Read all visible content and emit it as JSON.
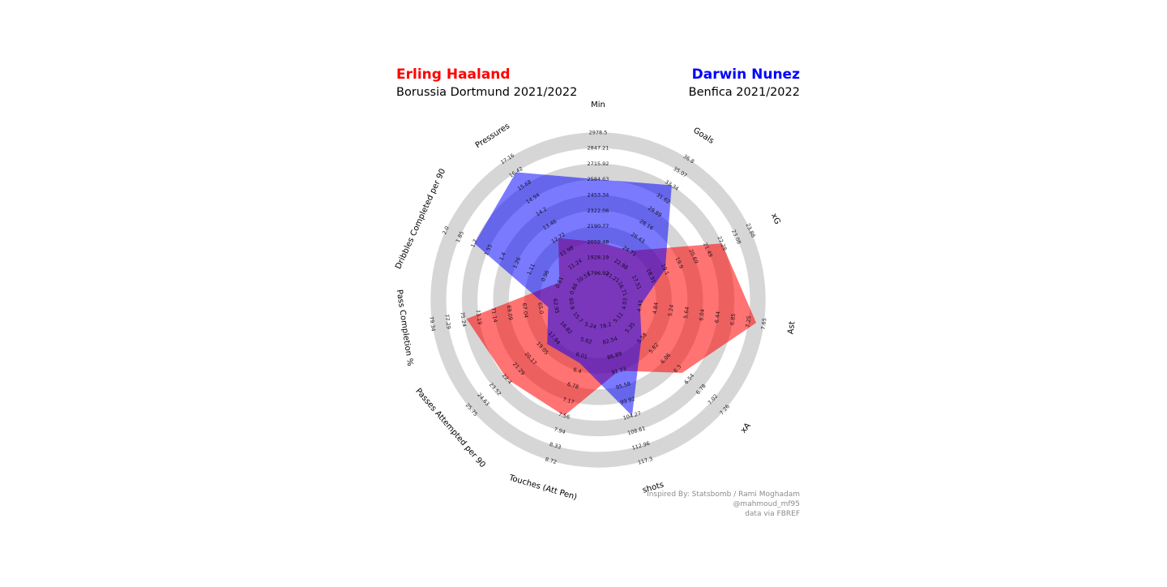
{
  "players": [
    {
      "name": "Erling Haaland",
      "team_season": "Borussia Dortmund 2021/2022",
      "color": "#ff0000"
    },
    {
      "name": "Darwin Nunez",
      "team_season": "Benfica 2021/2022",
      "color": "#0000ff"
    }
  ],
  "credits": [
    "Inspired By: Statsbomb / Rami Moghadam",
    "@mahmoud_mf95",
    "data via FBREF"
  ],
  "chart_data": {
    "type": "radar",
    "ring_fill": "#d6d6d6",
    "axes": [
      {
        "name": "Min",
        "ticks": [
          "1796.92",
          "1928.19",
          "2059.48",
          "2190.77",
          "2322.06",
          "2453.34",
          "2584.63",
          "2715.92",
          "2847.21",
          "2978.5"
        ]
      },
      {
        "name": "Goals",
        "ticks": [
          "21.21",
          "22.98",
          "24.71",
          "26.43",
          "28.16",
          "29.89",
          "31.62",
          "33.34",
          "35.07",
          "36.8"
        ]
      },
      {
        "name": "xG",
        "ticks": [
          "16.71",
          "17.51",
          "18.31",
          "19.1",
          "19.9",
          "20.69",
          "21.49",
          "22.28",
          "23.08",
          "23.88"
        ]
      },
      {
        "name": "Ast",
        "ticks": [
          "4.03",
          "4.43",
          "4.84",
          "5.24",
          "5.64",
          "6.04",
          "6.44",
          "6.85",
          "7.25",
          "7.65"
        ]
      },
      {
        "name": "xA",
        "ticks": [
          "5.11",
          "5.35",
          "5.58",
          "5.82",
          "6.06",
          "6.3",
          "6.54",
          "6.78",
          "7.02",
          "7.26"
        ]
      },
      {
        "name": "shots",
        "ticks": [
          "78.2",
          "82.54",
          "86.89",
          "91.23",
          "95.58",
          "99.92",
          "104.27",
          "108.61",
          "112.96",
          "117.3"
        ]
      },
      {
        "name": "Touches (Att Pen)",
        "ticks": [
          "5.24",
          "5.62",
          "6.01",
          "6.4",
          "6.78",
          "7.17",
          "7.56",
          "7.94",
          "8.33",
          "8.72"
        ]
      },
      {
        "name": "Passes Attempted per 90",
        "ticks": [
          "15.7",
          "16.82",
          "17.94",
          "19.05",
          "20.17",
          "21.29",
          "22.4",
          "23.52",
          "24.63",
          "25.75"
        ]
      },
      {
        "name": "Pass Completion %",
        "ticks": [
          "60.9",
          "62.95",
          "65.0",
          "67.04",
          "69.09",
          "71.14",
          "73.19",
          "75.24",
          "77.29",
          "79.34"
        ]
      },
      {
        "name": "Dribbles Completed per 90",
        "ticks": [
          "0.66",
          "0.81",
          "0.96",
          "1.11",
          "1.26",
          "1.4",
          "1.55",
          "1.7",
          "1.85",
          "2.0"
        ]
      },
      {
        "name": "Pressures",
        "ticks": [
          "10.51",
          "11.24",
          "11.98",
          "12.72",
          "13.46",
          "14.2",
          "14.94",
          "15.68",
          "16.42",
          "17.16"
        ]
      }
    ],
    "series": [
      {
        "name": "Erling Haaland",
        "color": "#ff0000",
        "opacity": 0.55,
        "values": [
          2059.48,
          24.71,
          22.28,
          7.45,
          6.4,
          91.23,
          7.56,
          22.4,
          74.8,
          0.81,
          12.72
        ]
      },
      {
        "name": "Darwin Nunez",
        "color": "#0000ff",
        "opacity": 0.52,
        "values": [
          2584.63,
          33.34,
          19.1,
          4.43,
          5.58,
          104.27,
          6.2,
          18.6,
          64.0,
          1.7,
          16.42
        ]
      }
    ]
  }
}
